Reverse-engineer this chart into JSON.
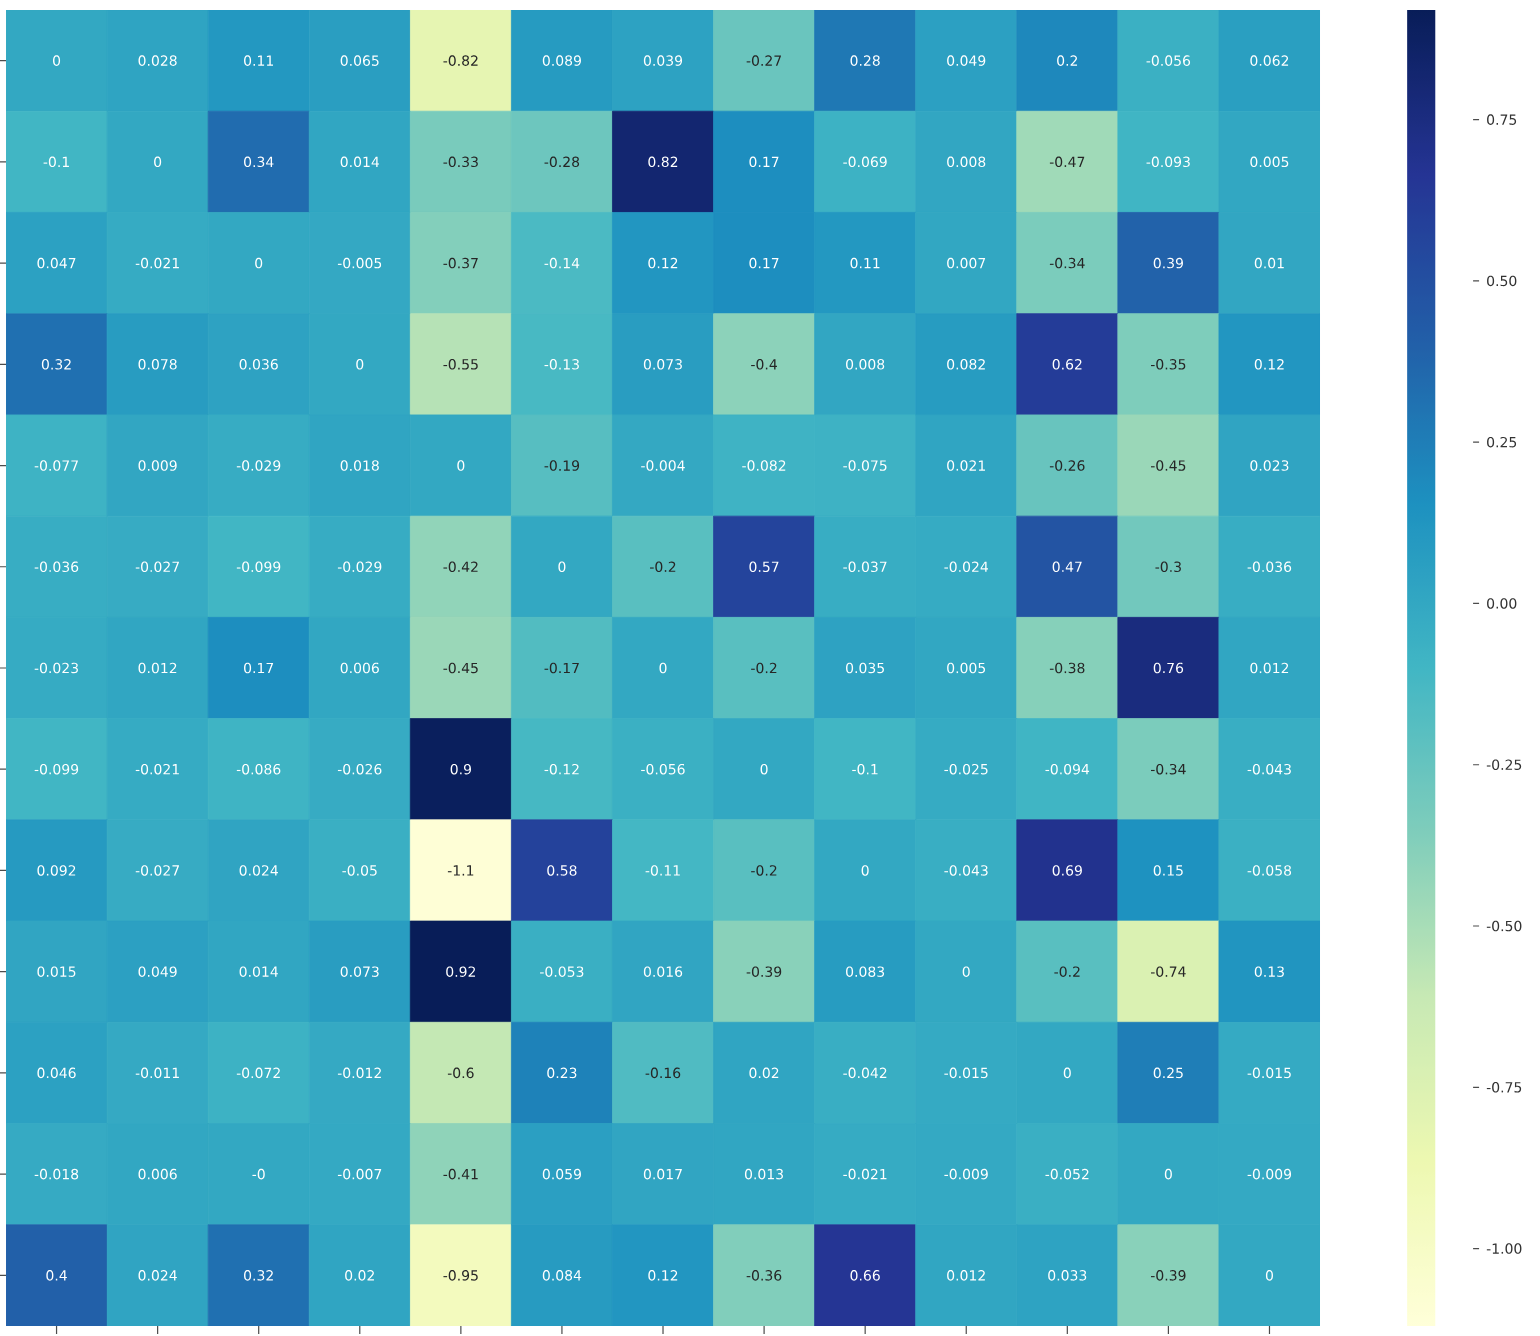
{
  "chart_data": {
    "type": "heatmap",
    "categories": [
      null,
      null,
      null,
      null,
      null,
      null,
      null,
      null,
      null,
      null,
      null,
      null,
      null
    ],
    "y_categories": [
      null,
      null,
      null,
      null,
      null,
      null,
      null,
      null,
      null,
      null,
      null,
      null,
      null
    ],
    "cells": [
      [
        0,
        0.028,
        0.11,
        0.065,
        -0.82,
        0.089,
        0.039,
        -0.27,
        0.28,
        0.049,
        0.2,
        -0.056,
        0.062
      ],
      [
        -0.1,
        0,
        0.34,
        0.014,
        -0.33,
        -0.28,
        0.82,
        0.17,
        -0.069,
        0.008,
        -0.47,
        -0.093,
        0.005
      ],
      [
        0.047,
        -0.021,
        0,
        -0.005,
        -0.37,
        -0.14,
        0.12,
        0.17,
        0.11,
        0.007,
        -0.34,
        0.39,
        0.01
      ],
      [
        0.32,
        0.078,
        0.036,
        0,
        -0.55,
        -0.13,
        0.073,
        -0.4,
        0.008,
        0.082,
        0.62,
        -0.35,
        0.12
      ],
      [
        -0.077,
        0.009,
        -0.029,
        0.018,
        0,
        -0.19,
        -0.004,
        -0.082,
        -0.075,
        0.021,
        -0.26,
        -0.45,
        0.023
      ],
      [
        -0.036,
        -0.027,
        -0.099,
        -0.029,
        -0.42,
        0,
        -0.2,
        0.57,
        -0.037,
        -0.024,
        0.47,
        -0.3,
        -0.036
      ],
      [
        -0.023,
        0.012,
        0.17,
        0.006,
        -0.45,
        -0.17,
        0,
        -0.2,
        0.035,
        0.005,
        -0.38,
        0.76,
        0.012
      ],
      [
        -0.099,
        -0.021,
        -0.086,
        -0.026,
        0.9,
        -0.12,
        -0.056,
        0,
        -0.1,
        -0.025,
        -0.094,
        -0.34,
        -0.043
      ],
      [
        0.092,
        -0.027,
        0.024,
        -0.05,
        -1.1,
        0.58,
        -0.11,
        -0.2,
        0,
        -0.043,
        0.69,
        0.15,
        -0.058
      ],
      [
        0.015,
        0.049,
        0.014,
        0.073,
        0.92,
        -0.053,
        0.016,
        -0.39,
        0.083,
        0,
        -0.2,
        -0.74,
        0.13
      ],
      [
        0.046,
        -0.011,
        -0.072,
        -0.012,
        -0.6,
        0.23,
        -0.16,
        0.02,
        -0.042,
        -0.015,
        0,
        0.25,
        -0.015
      ],
      [
        -0.018,
        0.006,
        -0.0,
        -0.007,
        -0.41,
        0.059,
        0.017,
        0.013,
        -0.021,
        -0.009,
        -0.052,
        0,
        -0.009
      ],
      [
        0.4,
        0.024,
        0.32,
        0.02,
        -0.95,
        0.084,
        0.12,
        -0.36,
        0.66,
        0.012,
        0.033,
        -0.39,
        0
      ]
    ],
    "cell_labels": [
      [
        "0",
        "0.028",
        "0.11",
        "0.065",
        "-0.82",
        "0.089",
        "0.039",
        "-0.27",
        "0.28",
        "0.049",
        "0.2",
        "-0.056",
        "0.062"
      ],
      [
        "-0.1",
        "0",
        "0.34",
        "0.014",
        "-0.33",
        "-0.28",
        "0.82",
        "0.17",
        "-0.069",
        "0.008",
        "-0.47",
        "-0.093",
        "0.005"
      ],
      [
        "0.047",
        "-0.021",
        "0",
        "-0.005",
        "-0.37",
        "-0.14",
        "0.12",
        "0.17",
        "0.11",
        "0.007",
        "-0.34",
        "0.39",
        "0.01"
      ],
      [
        "0.32",
        "0.078",
        "0.036",
        "0",
        "-0.55",
        "-0.13",
        "0.073",
        "-0.4",
        "0.008",
        "0.082",
        "0.62",
        "-0.35",
        "0.12"
      ],
      [
        "-0.077",
        "0.009",
        "-0.029",
        "0.018",
        "0",
        "-0.19",
        "-0.004",
        "-0.082",
        "-0.075",
        "0.021",
        "-0.26",
        "-0.45",
        "0.023"
      ],
      [
        "-0.036",
        "-0.027",
        "-0.099",
        "-0.029",
        "-0.42",
        "0",
        "-0.2",
        "0.57",
        "-0.037",
        "-0.024",
        "0.47",
        "-0.3",
        "-0.036"
      ],
      [
        "-0.023",
        "0.012",
        "0.17",
        "0.006",
        "-0.45",
        "-0.17",
        "0",
        "-0.2",
        "0.035",
        "0.005",
        "-0.38",
        "0.76",
        "0.012"
      ],
      [
        "-0.099",
        "-0.021",
        "-0.086",
        "-0.026",
        "0.9",
        "-0.12",
        "-0.056",
        "0",
        "-0.1",
        "-0.025",
        "-0.094",
        "-0.34",
        "-0.043"
      ],
      [
        "0.092",
        "-0.027",
        "0.024",
        "-0.05",
        "-1.1",
        "0.58",
        "-0.11",
        "-0.2",
        "0",
        "-0.043",
        "0.69",
        "0.15",
        "-0.058"
      ],
      [
        "0.015",
        "0.049",
        "0.014",
        "0.073",
        "0.92",
        "-0.053",
        "0.016",
        "-0.39",
        "0.083",
        "0",
        "-0.2",
        "-0.74",
        "0.13"
      ],
      [
        "0.046",
        "-0.011",
        "-0.072",
        "-0.012",
        "-0.6",
        "0.23",
        "-0.16",
        "0.02",
        "-0.042",
        "-0.015",
        "0",
        "0.25",
        "-0.015"
      ],
      [
        "-0.018",
        "0.006",
        "-0",
        "-0.007",
        "-0.41",
        "0.059",
        "0.017",
        "0.013",
        "-0.021",
        "-0.009",
        "-0.052",
        "0",
        "-0.009"
      ],
      [
        "0.4",
        "0.024",
        "0.32",
        "0.02",
        "-0.95",
        "0.084",
        "0.12",
        "-0.36",
        "0.66",
        "0.012",
        "0.033",
        "-0.39",
        "0"
      ]
    ],
    "clim": [
      -1.12,
      0.92
    ],
    "cticks": [
      {
        "value": -1.0,
        "label": "-1.00"
      },
      {
        "value": -0.75,
        "label": "-0.75"
      },
      {
        "value": -0.5,
        "label": "-0.50"
      },
      {
        "value": -0.25,
        "label": "-0.25"
      },
      {
        "value": 0.0,
        "label": "0.00"
      },
      {
        "value": 0.25,
        "label": "0.25"
      },
      {
        "value": 0.5,
        "label": "0.50"
      },
      {
        "value": 0.75,
        "label": "0.75"
      }
    ]
  }
}
